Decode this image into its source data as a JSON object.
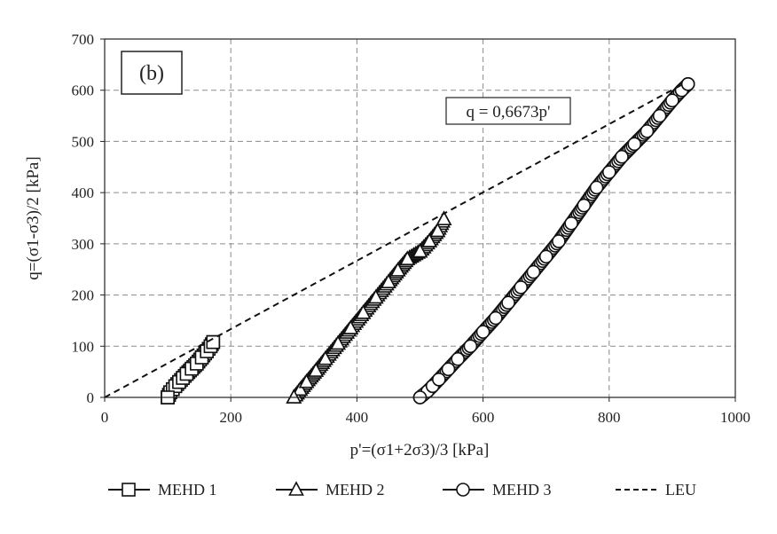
{
  "chart_data": {
    "type": "scatter",
    "panel_label": "(b)",
    "xlabel": "p'=(σ1+2σ3)/3 [kPa]",
    "ylabel": "q=(σ1-σ3)/2 [kPa]",
    "xlim": [
      0,
      1000
    ],
    "ylim": [
      0,
      700
    ],
    "x_ticks": [
      0,
      200,
      400,
      600,
      800,
      1000
    ],
    "y_ticks": [
      0,
      100,
      200,
      300,
      400,
      500,
      600,
      700
    ],
    "grid": true,
    "legend_position": "bottom",
    "annotation": "q = 0,6673p'",
    "series": [
      {
        "name": "MEHD 1",
        "marker": "square",
        "x": [
          100,
          102,
          104,
          108,
          112,
          118,
          124,
          130,
          138,
          146,
          154,
          162,
          168,
          172
        ],
        "y": [
          0,
          5,
          10,
          16,
          22,
          30,
          38,
          46,
          56,
          66,
          78,
          90,
          100,
          108
        ]
      },
      {
        "name": "MEHD 2",
        "marker": "triangle",
        "x": [
          300,
          303,
          310,
          320,
          335,
          350,
          370,
          390,
          410,
          430,
          450,
          465,
          480,
          500,
          515,
          528,
          538
        ],
        "y": [
          0,
          4,
          15,
          30,
          52,
          75,
          105,
          135,
          165,
          195,
          225,
          248,
          270,
          285,
          305,
          325,
          348
        ]
      },
      {
        "name": "MEHD 3",
        "marker": "circle",
        "x": [
          500,
          505,
          512,
          520,
          530,
          545,
          560,
          580,
          600,
          620,
          640,
          660,
          680,
          700,
          720,
          740,
          760,
          780,
          800,
          820,
          840,
          860,
          880,
          900,
          915,
          925
        ],
        "y": [
          0,
          5,
          12,
          22,
          35,
          55,
          75,
          100,
          128,
          155,
          185,
          215,
          245,
          275,
          305,
          340,
          375,
          410,
          440,
          470,
          495,
          520,
          550,
          580,
          600,
          612
        ]
      },
      {
        "name": "LEU",
        "style": "dashed",
        "x": [
          0,
          915
        ],
        "y": [
          0,
          610.6
        ]
      }
    ]
  }
}
